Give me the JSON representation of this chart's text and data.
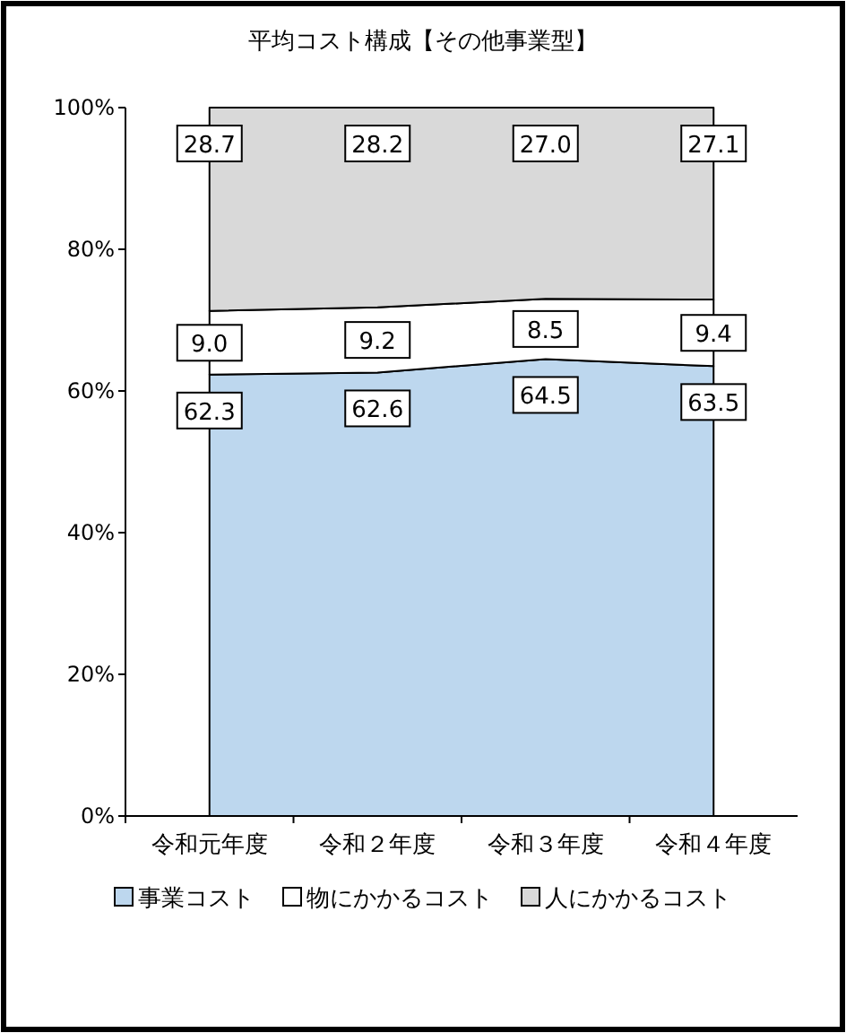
{
  "chart_data": {
    "type": "area",
    "stacked": true,
    "title": "平均コスト構成【その他事業型】",
    "categories": [
      "令和元年度",
      "令和２年度",
      "令和３年度",
      "令和４年度"
    ],
    "series": [
      {
        "name": "事業コスト",
        "color": "#bdd7ee",
        "values": [
          62.3,
          62.6,
          64.5,
          63.5
        ],
        "value_labels": [
          "62.3",
          "62.6",
          "64.5",
          "63.5"
        ]
      },
      {
        "name": "物にかかるコスト",
        "color": "#ffffff",
        "values": [
          9.0,
          9.2,
          8.5,
          9.4
        ],
        "value_labels": [
          "9.0",
          "9.2",
          "8.5",
          "9.4"
        ]
      },
      {
        "name": "人にかかるコスト",
        "color": "#d9d9d9",
        "values": [
          28.7,
          28.2,
          27.0,
          27.1
        ],
        "value_labels": [
          "28.7",
          "28.2",
          "27.0",
          "27.1"
        ]
      }
    ],
    "ylim": [
      0,
      100
    ],
    "yticks": [
      {
        "value": 0,
        "label": "0%"
      },
      {
        "value": 20,
        "label": "20%"
      },
      {
        "value": 40,
        "label": "40%"
      },
      {
        "value": 60,
        "label": "60%"
      },
      {
        "value": 80,
        "label": "80%"
      },
      {
        "value": 100,
        "label": "100%"
      }
    ],
    "legend": "bottom"
  }
}
